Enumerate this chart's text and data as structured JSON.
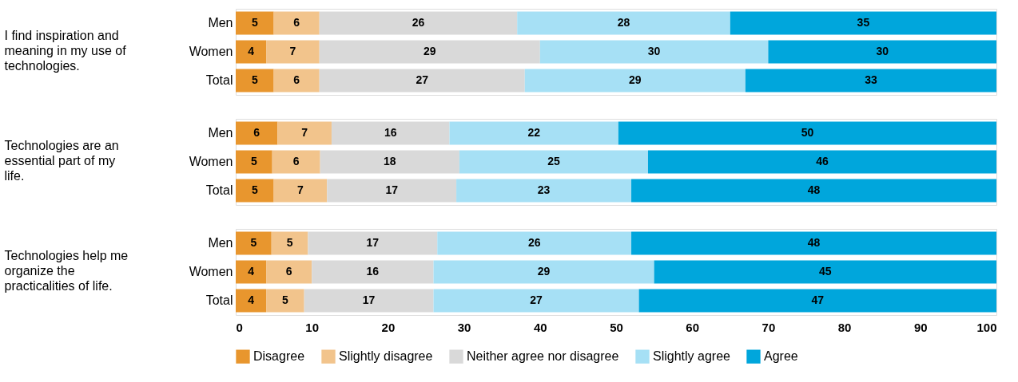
{
  "chart_data": [
    {
      "type": "bar",
      "orientation": "horizontal",
      "stacked": true,
      "ylabel": "I find inspiration and meaning in my use of technologies.",
      "categories": [
        "Men",
        "Women",
        "Total"
      ],
      "xlim": [
        0,
        100
      ],
      "xticks": [
        0,
        10,
        20,
        30,
        40,
        50,
        60,
        70,
        80,
        90,
        100
      ],
      "tick_labels": "y",
      "series": [
        {
          "color": "#e8962e",
          "values": [
            5,
            4,
            5
          ],
          "value_labels": [
            "5",
            "4",
            "5"
          ]
        },
        {
          "color": "#f2c48c",
          "values": [
            6,
            7,
            6
          ],
          "value_labels": [
            "6",
            "7",
            "6"
          ]
        },
        {
          "color": "#d9d9d9",
          "values": [
            26,
            29,
            27
          ],
          "value_labels": [
            "26",
            "29",
            "27"
          ]
        },
        {
          "color": "#a6e0f5",
          "values": [
            28,
            30,
            29
          ],
          "value_labels": [
            "28",
            "30",
            "29"
          ]
        },
        {
          "color": "#00a6dc",
          "values": [
            35,
            30,
            33
          ],
          "value_labels": [
            "35",
            "30",
            "33"
          ]
        }
      ]
    },
    {
      "type": "bar",
      "orientation": "horizontal",
      "stacked": true,
      "ylabel": "Technologies are an essential part of my life.",
      "categories": [
        "Men",
        "Women",
        "Total"
      ],
      "xlim": [
        0,
        100
      ],
      "xticks": [
        0,
        10,
        20,
        30,
        40,
        50,
        60,
        70,
        80,
        90,
        100
      ],
      "tick_labels": "y",
      "series": [
        {
          "color": "#e8962e",
          "values": [
            5.5,
            4.8,
            5
          ],
          "value_labels": [
            "6",
            "5",
            "5"
          ]
        },
        {
          "color": "#f2c48c",
          "values": [
            7.1,
            6.3,
            7
          ],
          "value_labels": [
            "7",
            "6",
            "7"
          ]
        },
        {
          "color": "#d9d9d9",
          "values": [
            15.5,
            18.3,
            17
          ],
          "value_labels": [
            "16",
            "18",
            "17"
          ]
        },
        {
          "color": "#a6e0f5",
          "values": [
            22.2,
            24.8,
            23
          ],
          "value_labels": [
            "22",
            "25",
            "23"
          ]
        },
        {
          "color": "#00a6dc",
          "values": [
            49.7,
            45.8,
            48
          ],
          "value_labels": [
            "50",
            "46",
            "48"
          ]
        }
      ]
    },
    {
      "type": "bar",
      "orientation": "horizontal",
      "stacked": true,
      "ylabel": "Technologies help me organize the practicalities of life.",
      "categories": [
        "Men",
        "Women",
        "Total"
      ],
      "xlim": [
        0,
        100
      ],
      "xticks": [
        0,
        10,
        20,
        30,
        40,
        50,
        60,
        70,
        80,
        90,
        100
      ],
      "legend": "bottom",
      "series": [
        {
          "name": "Disagree",
          "color": "#e8962e",
          "values": [
            4.7,
            4,
            4
          ],
          "value_labels": [
            "5",
            "4",
            "4"
          ]
        },
        {
          "name": "Slightly disagree",
          "color": "#f2c48c",
          "values": [
            4.8,
            6,
            5
          ],
          "value_labels": [
            "5",
            "6",
            "5"
          ]
        },
        {
          "name": "Neither agree nor disagree",
          "color": "#d9d9d9",
          "values": [
            17,
            16,
            17
          ],
          "value_labels": [
            "17",
            "16",
            "17"
          ]
        },
        {
          "name": "Slightly agree",
          "color": "#a6e0f5",
          "values": [
            25.5,
            29,
            27
          ],
          "value_labels": [
            "26",
            "29",
            "27"
          ]
        },
        {
          "name": "Agree",
          "color": "#00a6dc",
          "values": [
            48,
            45,
            47
          ],
          "value_labels": [
            "48",
            "45",
            "47"
          ]
        }
      ]
    }
  ]
}
